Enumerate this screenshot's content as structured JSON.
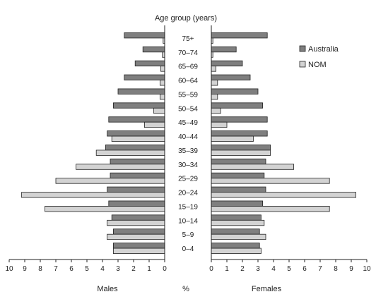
{
  "chart_data": {
    "type": "bar",
    "orientation": "horizontal-population-pyramid",
    "title": "Age group (years)",
    "unit_label": "%",
    "left_panel_label": "Males",
    "right_panel_label": "Females",
    "categories": [
      "75+",
      "70–74",
      "65–69",
      "60–64",
      "55–59",
      "50–54",
      "45–49",
      "40–44",
      "35–39",
      "30–34",
      "25–29",
      "20–24",
      "15–19",
      "10–14",
      "5–9",
      "0–4"
    ],
    "series": [
      {
        "name": "Australia",
        "color": "#7f7f7f",
        "males": [
          2.6,
          1.4,
          1.9,
          2.6,
          3.0,
          3.3,
          3.6,
          3.7,
          3.8,
          3.5,
          3.5,
          3.7,
          3.6,
          3.4,
          3.3,
          3.3
        ],
        "females": [
          3.6,
          1.6,
          2.0,
          2.5,
          3.0,
          3.3,
          3.6,
          3.6,
          3.8,
          3.5,
          3.4,
          3.5,
          3.3,
          3.2,
          3.1,
          3.1
        ]
      },
      {
        "name": "NOM",
        "color": "#d3d3d3",
        "males": [
          0.1,
          0.15,
          0.25,
          0.3,
          0.3,
          0.7,
          1.3,
          3.4,
          4.4,
          5.7,
          7.0,
          9.2,
          7.7,
          3.7,
          3.7,
          3.3
        ],
        "females": [
          0.1,
          0.1,
          0.3,
          0.4,
          0.4,
          0.6,
          1.0,
          2.7,
          3.8,
          5.3,
          7.6,
          9.3,
          7.6,
          3.4,
          3.5,
          3.2
        ]
      }
    ],
    "xlim": [
      0,
      10
    ],
    "xticks_males": [
      "10",
      "9",
      "8",
      "7",
      "6",
      "5",
      "4",
      "3",
      "2",
      "1",
      "0"
    ],
    "xticks_females": [
      "0",
      "1",
      "2",
      "3",
      "4",
      "5",
      "6",
      "7",
      "8",
      "9",
      "10"
    ],
    "legend_position": "top-right",
    "grid": false
  }
}
